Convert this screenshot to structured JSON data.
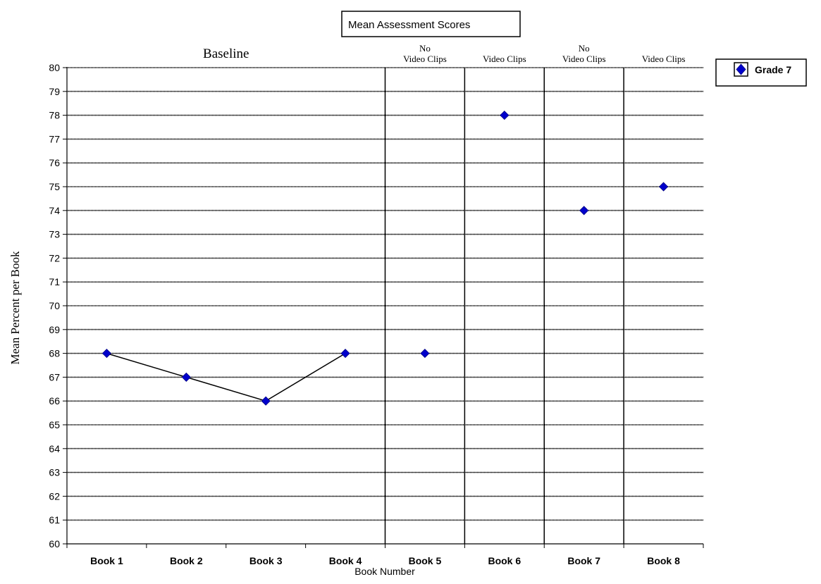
{
  "chart_data": {
    "type": "line",
    "title": "Mean Assessment Scores",
    "xlabel": "Book Number",
    "ylabel": "Mean Percent per Book",
    "ylim": [
      60,
      80
    ],
    "y_ticks": [
      60,
      61,
      62,
      63,
      64,
      65,
      66,
      67,
      68,
      69,
      70,
      71,
      72,
      73,
      74,
      75,
      76,
      77,
      78,
      79,
      80
    ],
    "categories": [
      "Book 1",
      "Book 2",
      "Book 3",
      "Book 4",
      "Book 5",
      "Book 6",
      "Book 7",
      "Book 8"
    ],
    "series": [
      {
        "name": "Grade 7",
        "values": [
          68,
          67,
          66,
          68,
          68,
          78,
          74,
          75
        ],
        "connected_segment": [
          0,
          3
        ],
        "color": "#0000cc",
        "marker": "diamond"
      }
    ],
    "phases": [
      {
        "label_lines": [
          "Baseline"
        ],
        "start": 0,
        "end": 3
      },
      {
        "label_lines": [
          "No",
          "Video Clips"
        ],
        "start": 4,
        "end": 4
      },
      {
        "label_lines": [
          "Video Clips"
        ],
        "start": 5,
        "end": 5
      },
      {
        "label_lines": [
          "No",
          "Video Clips"
        ],
        "start": 6,
        "end": 6
      },
      {
        "label_lines": [
          "Video Clips"
        ],
        "start": 7,
        "end": 7
      }
    ],
    "grid": true,
    "legend_position": "top-right"
  }
}
